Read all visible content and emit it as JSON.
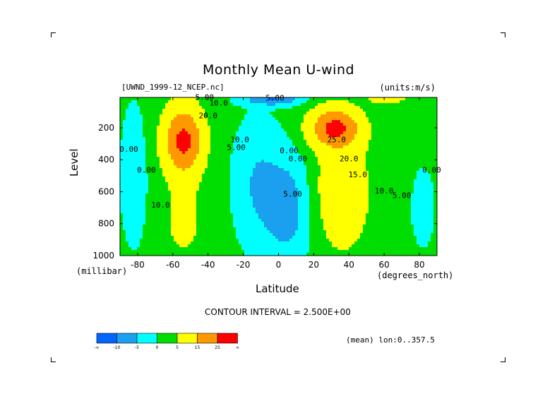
{
  "title": "Monthly Mean U-wind",
  "dataset": "[UWND_1999-12_NCEP.nc]",
  "units": "(units:m/s)",
  "contour_interval": "CONTOUR INTERVAL = 2.500E+00",
  "mean_note": "(mean) lon:0..357.5",
  "colorbar": {
    "colors": [
      "#0066ff",
      "#1aa0ee",
      "#00ffff",
      "#00dd00",
      "#ffff00",
      "#ff9900",
      "#ff0000"
    ],
    "labels": [
      "-∞",
      "-10",
      "-5",
      "0",
      "5",
      "15",
      "25",
      "∞"
    ]
  },
  "chart_data": {
    "type": "heatmap",
    "title": "Monthly Mean U-wind",
    "xlabel": "Latitude",
    "xunit": "(degrees_north)",
    "ylabel": "Level",
    "yunit": "(millibar)",
    "xlim": [
      -90,
      90
    ],
    "ylim": [
      1000,
      10
    ],
    "xticks": [
      -80,
      -60,
      -40,
      -20,
      0,
      20,
      40,
      60,
      80
    ],
    "yticks": [
      200,
      400,
      600,
      800,
      1000
    ],
    "x_tick_labels": [
      "-80",
      "-60",
      "-40",
      "-20",
      "0",
      "20",
      "40",
      "60",
      "80"
    ],
    "y_tick_labels": [
      "200",
      "400",
      "600",
      "800",
      "1000"
    ],
    "contour_labels": [
      {
        "text": "5.00",
        "lat": -42,
        "lev": 25
      },
      {
        "text": "10.0",
        "lat": -34,
        "lev": 60
      },
      {
        "text": "20.0",
        "lat": -40,
        "lev": 140
      },
      {
        "text": "10.0",
        "lat": -22,
        "lev": 290
      },
      {
        "text": "5.00",
        "lat": -24,
        "lev": 340
      },
      {
        "text": "0.00",
        "lat": -85,
        "lev": 350
      },
      {
        "text": "0.00",
        "lat": -75,
        "lev": 480
      },
      {
        "text": "10.0",
        "lat": -67,
        "lev": 700
      },
      {
        "text": "0.00",
        "lat": 6,
        "lev": 360
      },
      {
        "text": "0.00",
        "lat": 11,
        "lev": 410
      },
      {
        "text": "5.00",
        "lat": -2,
        "lev": 30
      },
      {
        "text": "5.00",
        "lat": 8,
        "lev": 630
      },
      {
        "text": "25.0",
        "lat": 33,
        "lev": 290
      },
      {
        "text": "20.0",
        "lat": 40,
        "lev": 410
      },
      {
        "text": "15.0",
        "lat": 45,
        "lev": 510
      },
      {
        "text": "10.0",
        "lat": 60,
        "lev": 610
      },
      {
        "text": "5.00",
        "lat": 70,
        "lev": 640
      },
      {
        "text": "0.00",
        "lat": 87,
        "lev": 480
      }
    ]
  }
}
